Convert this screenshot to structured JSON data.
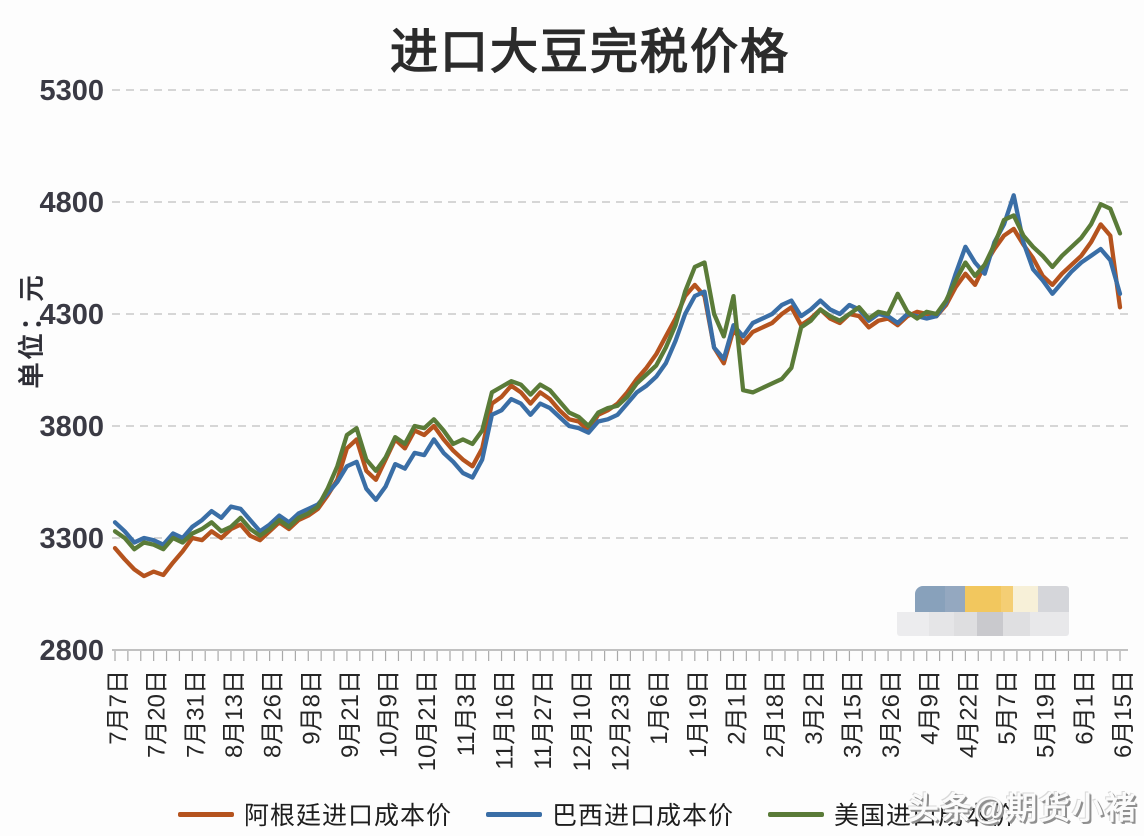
{
  "chart_data": {
    "type": "line",
    "title": "进口大豆完税价格",
    "ylabel": "单位：元",
    "ylim": [
      2800,
      5300
    ],
    "y_ticks": [
      5300,
      4800,
      4300,
      3800,
      3300,
      2800
    ],
    "grid": "horizontal-dashed",
    "legend_position": "bottom",
    "x_tick_labels": [
      "7月7日",
      "7月20日",
      "7月31日",
      "8月13日",
      "8月26日",
      "9月8日",
      "9月21日",
      "10月9日",
      "10月21日",
      "11月3日",
      "11月16日",
      "11月27日",
      "12月10日",
      "12月23日",
      "1月6日",
      "1月19日",
      "2月1日",
      "2月18日",
      "3月2日",
      "3月15日",
      "3月26日",
      "4月9日",
      "4月22日",
      "5月7日",
      "5月19日",
      "6月1日",
      "6月15日"
    ],
    "x_minor_ticks_per_label_gap": 3,
    "series": [
      {
        "name": "阿根廷进口成本价",
        "color": "#b5531e",
        "values": [
          3255,
          3205,
          3160,
          3130,
          3150,
          3135,
          3190,
          3240,
          3300,
          3290,
          3330,
          3300,
          3340,
          3360,
          3310,
          3290,
          3330,
          3370,
          3340,
          3380,
          3400,
          3430,
          3490,
          3560,
          3700,
          3740,
          3600,
          3560,
          3650,
          3740,
          3700,
          3780,
          3760,
          3800,
          3740,
          3690,
          3650,
          3620,
          3700,
          3900,
          3930,
          3980,
          3950,
          3900,
          3950,
          3920,
          3870,
          3830,
          3820,
          3780,
          3850,
          3870,
          3900,
          3950,
          4010,
          4060,
          4120,
          4200,
          4280,
          4380,
          4430,
          4380,
          4150,
          4080,
          4230,
          4170,
          4220,
          4240,
          4260,
          4300,
          4330,
          4250,
          4280,
          4320,
          4280,
          4260,
          4300,
          4290,
          4240,
          4270,
          4280,
          4250,
          4290,
          4310,
          4300,
          4290,
          4340,
          4420,
          4480,
          4430,
          4520,
          4590,
          4650,
          4680,
          4610,
          4550,
          4470,
          4430,
          4480,
          4520,
          4560,
          4620,
          4700,
          4650,
          4330
        ]
      },
      {
        "name": "巴西进口成本价",
        "color": "#3a6ea6",
        "values": [
          3370,
          3330,
          3280,
          3300,
          3290,
          3270,
          3320,
          3300,
          3350,
          3380,
          3420,
          3390,
          3440,
          3430,
          3380,
          3330,
          3360,
          3400,
          3370,
          3410,
          3430,
          3450,
          3500,
          3550,
          3620,
          3640,
          3520,
          3470,
          3530,
          3630,
          3610,
          3680,
          3670,
          3740,
          3680,
          3640,
          3590,
          3570,
          3650,
          3850,
          3870,
          3920,
          3900,
          3850,
          3900,
          3880,
          3840,
          3800,
          3790,
          3770,
          3820,
          3830,
          3850,
          3900,
          3950,
          3980,
          4020,
          4080,
          4180,
          4300,
          4380,
          4400,
          4150,
          4100,
          4250,
          4200,
          4260,
          4280,
          4300,
          4340,
          4360,
          4290,
          4320,
          4360,
          4320,
          4300,
          4340,
          4320,
          4270,
          4300,
          4290,
          4260,
          4300,
          4290,
          4280,
          4290,
          4350,
          4480,
          4600,
          4530,
          4480,
          4620,
          4700,
          4830,
          4620,
          4500,
          4450,
          4390,
          4440,
          4490,
          4530,
          4560,
          4590,
          4540,
          4390
        ]
      },
      {
        "name": "美国进口成本价",
        "color": "#5a7b38",
        "values": [
          3330,
          3300,
          3250,
          3280,
          3270,
          3250,
          3300,
          3280,
          3320,
          3340,
          3370,
          3330,
          3350,
          3390,
          3340,
          3310,
          3340,
          3380,
          3350,
          3390,
          3410,
          3440,
          3520,
          3620,
          3760,
          3790,
          3650,
          3600,
          3660,
          3750,
          3720,
          3800,
          3790,
          3830,
          3780,
          3720,
          3740,
          3720,
          3780,
          3950,
          3975,
          4000,
          3985,
          3940,
          3985,
          3960,
          3910,
          3860,
          3840,
          3800,
          3860,
          3880,
          3890,
          3930,
          3990,
          4030,
          4070,
          4150,
          4250,
          4400,
          4510,
          4530,
          4300,
          4200,
          4380,
          3960,
          3950,
          3970,
          3990,
          4010,
          4060,
          4240,
          4270,
          4320,
          4290,
          4270,
          4300,
          4330,
          4280,
          4310,
          4300,
          4390,
          4310,
          4280,
          4310,
          4300,
          4360,
          4450,
          4530,
          4470,
          4520,
          4610,
          4720,
          4740,
          4650,
          4600,
          4560,
          4510,
          4560,
          4600,
          4640,
          4700,
          4790,
          4770,
          4660
        ]
      }
    ]
  },
  "watermark": {
    "text": "头条@期货小褚"
  },
  "censor_blocks": {
    "row1": [
      {
        "color": "#88a1bb",
        "width": 30
      },
      {
        "color": "#94a8c0",
        "width": 20
      },
      {
        "color": "#f2c75e",
        "width": 36
      },
      {
        "color": "#f4ce74",
        "width": 12
      },
      {
        "color": "#f7f0d8",
        "width": 25
      },
      {
        "color": "#d5d6da",
        "width": 31
      }
    ],
    "row2": [
      {
        "color": "#ececee",
        "width": 32
      },
      {
        "color": "#e5e5e7",
        "width": 25
      },
      {
        "color": "#dedee0",
        "width": 23
      },
      {
        "color": "#c9c9cd",
        "width": 26
      },
      {
        "color": "#dfdfe1",
        "width": 27
      },
      {
        "color": "#e8e8ea",
        "width": 39
      }
    ]
  }
}
